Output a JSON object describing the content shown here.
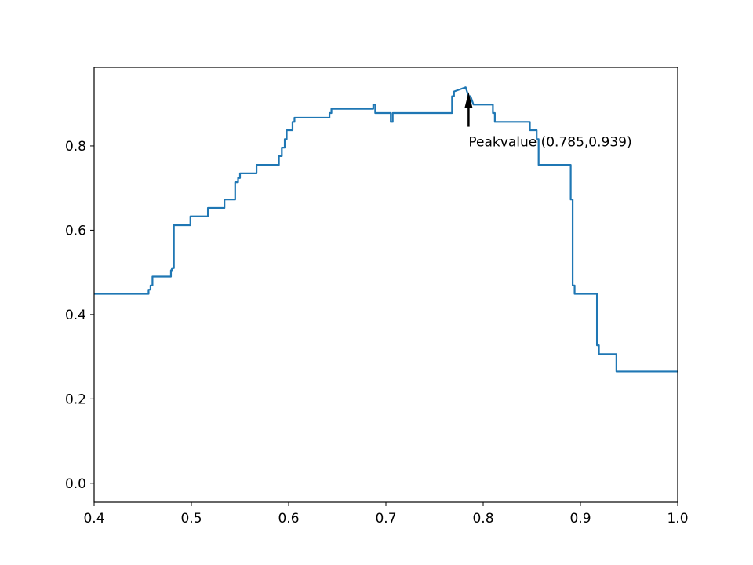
{
  "chart_data": {
    "type": "line",
    "title": "",
    "xlabel": "",
    "ylabel": "",
    "xlim": [
      0.4,
      1.0
    ],
    "ylim": [
      -0.045,
      0.986
    ],
    "x_ticks": [
      0.4,
      0.5,
      0.6,
      0.7,
      0.8,
      0.9,
      1.0
    ],
    "x_tick_labels": [
      "0.4",
      "0.5",
      "0.6",
      "0.7",
      "0.8",
      "0.9",
      "1.0"
    ],
    "y_ticks": [
      0.0,
      0.2,
      0.4,
      0.6,
      0.8
    ],
    "y_tick_labels": [
      "0.0",
      "0.2",
      "0.4",
      "0.6",
      "0.8"
    ],
    "grid": false,
    "legend": "none",
    "series": [
      {
        "color": "#1f77b4",
        "x": [
          0.4,
          0.456,
          0.456,
          0.458,
          0.458,
          0.46,
          0.46,
          0.479,
          0.479,
          0.48,
          0.48,
          0.482,
          0.482,
          0.499,
          0.499,
          0.517,
          0.517,
          0.534,
          0.534,
          0.545,
          0.545,
          0.548,
          0.548,
          0.55,
          0.55,
          0.567,
          0.567,
          0.59,
          0.59,
          0.593,
          0.593,
          0.596,
          0.596,
          0.598,
          0.598,
          0.604,
          0.604,
          0.606,
          0.606,
          0.642,
          0.642,
          0.644,
          0.644,
          0.687,
          0.687,
          0.689,
          0.689,
          0.705,
          0.705,
          0.707,
          0.707,
          0.768,
          0.768,
          0.77,
          0.77,
          0.782,
          0.782,
          0.785,
          0.787,
          0.79,
          0.81,
          0.81,
          0.812,
          0.812,
          0.848,
          0.848,
          0.855,
          0.855,
          0.857,
          0.857,
          0.89,
          0.89,
          0.892,
          0.892,
          0.894,
          0.894,
          0.917,
          0.917,
          0.919,
          0.919,
          0.937,
          0.937,
          0.94,
          0.94,
          1.0
        ],
        "y": [
          0.449,
          0.449,
          0.459,
          0.459,
          0.469,
          0.469,
          0.49,
          0.49,
          0.505,
          0.505,
          0.51,
          0.51,
          0.612,
          0.612,
          0.633,
          0.633,
          0.653,
          0.653,
          0.673,
          0.673,
          0.714,
          0.714,
          0.724,
          0.724,
          0.735,
          0.735,
          0.755,
          0.755,
          0.776,
          0.776,
          0.796,
          0.796,
          0.816,
          0.816,
          0.837,
          0.837,
          0.857,
          0.857,
          0.867,
          0.867,
          0.878,
          0.878,
          0.888,
          0.888,
          0.898,
          0.898,
          0.878,
          0.878,
          0.857,
          0.857,
          0.878,
          0.878,
          0.918,
          0.918,
          0.929,
          0.939,
          0.939,
          0.918,
          0.918,
          0.898,
          0.898,
          0.878,
          0.878,
          0.857,
          0.857,
          0.837,
          0.837,
          0.816,
          0.816,
          0.755,
          0.755,
          0.673,
          0.673,
          0.469,
          0.469,
          0.449,
          0.449,
          0.327,
          0.327,
          0.306,
          0.306,
          0.265,
          0.265,
          0.265,
          0.265
        ]
      }
    ],
    "annotation": {
      "text": "Peakvalue (0.785,0.939)",
      "xy": [
        0.785,
        0.939
      ],
      "xytext": [
        0.785,
        0.81
      ]
    }
  }
}
